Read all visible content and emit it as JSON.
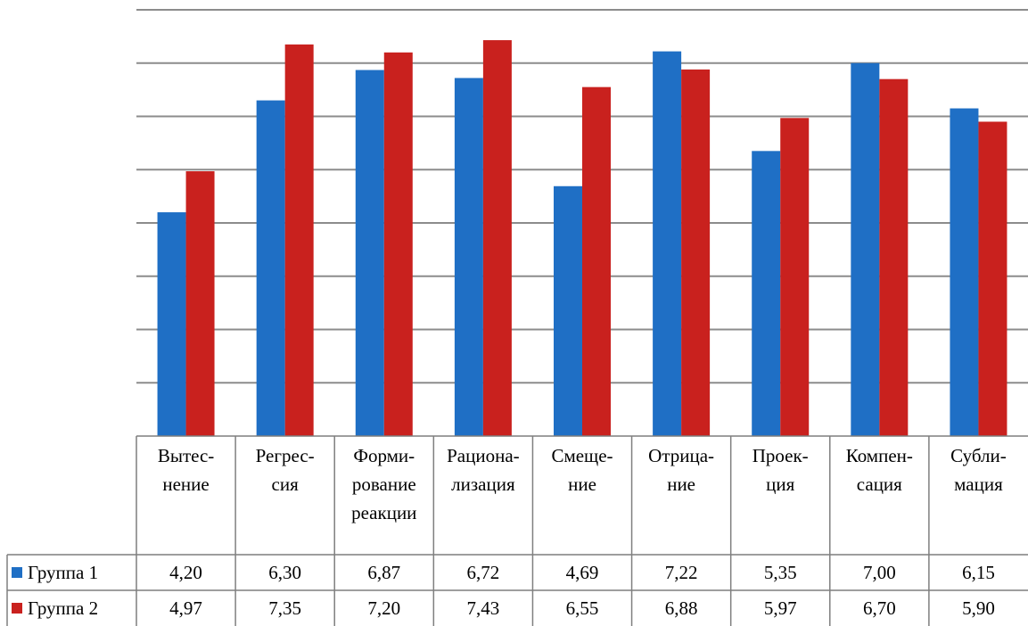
{
  "chart_data": {
    "type": "bar",
    "categories": [
      [
        "Вытес-",
        "нение"
      ],
      [
        "Регрес-",
        "сия"
      ],
      [
        "Форми-",
        "рование",
        "реакции"
      ],
      [
        "Рациона-",
        "лизация"
      ],
      [
        "Смеще-",
        "ние"
      ],
      [
        "Отрица-",
        "ние"
      ],
      [
        "Проек-",
        "ция"
      ],
      [
        "Компен-",
        "сация"
      ],
      [
        "Субли-",
        "мация"
      ]
    ],
    "series": [
      {
        "name": "Группа 1",
        "color": "#1f6fc5",
        "values": [
          4.2,
          6.3,
          6.87,
          6.72,
          4.69,
          7.22,
          5.35,
          7.0,
          6.15
        ],
        "labels": [
          "4,20",
          "6,30",
          "6,87",
          "6,72",
          "4,69",
          "7,22",
          "5,35",
          "7,00",
          "6,15"
        ]
      },
      {
        "name": "Группа 2",
        "color": "#c9211e",
        "values": [
          4.97,
          7.35,
          7.2,
          7.43,
          6.55,
          6.88,
          5.97,
          6.7,
          5.9
        ],
        "labels": [
          "4,97",
          "7,35",
          "7,20",
          "7,43",
          "6,55",
          "6,88",
          "5,97",
          "6,70",
          "5,90"
        ]
      }
    ],
    "ylim": [
      0,
      8
    ],
    "gridlines": true,
    "legend": "data-table-left"
  }
}
